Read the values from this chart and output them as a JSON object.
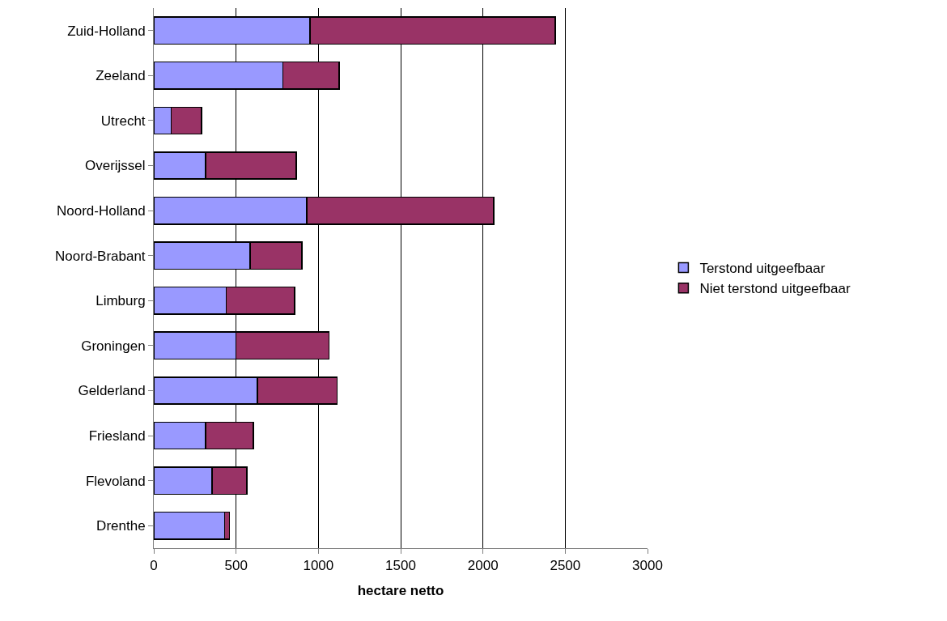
{
  "chart_data": {
    "type": "bar",
    "orientation": "horizontal",
    "stacked": true,
    "xlabel": "hectare netto",
    "categories": [
      "Zuid-Holland",
      "Zeeland",
      "Utrecht",
      "Overijssel",
      "Noord-Holland",
      "Noord-Brabant",
      "Limburg",
      "Groningen",
      "Gelderland",
      "Friesland",
      "Flevoland",
      "Drenthe"
    ],
    "series": [
      {
        "name": "Terstond uitgeefbaar",
        "color": "#9999ff",
        "values": [
          950,
          785,
          105,
          315,
          930,
          585,
          440,
          500,
          630,
          315,
          355,
          430
        ]
      },
      {
        "name": "Niet terstond uitgeefbaar",
        "color": "#993366",
        "values": [
          1490,
          340,
          185,
          550,
          1135,
          315,
          415,
          565,
          485,
          290,
          210,
          30
        ]
      }
    ],
    "xlim": [
      0,
      3000
    ],
    "xticks": [
      0,
      500,
      1000,
      1500,
      2000,
      2500,
      3000
    ],
    "grid": "x",
    "legend": "right"
  }
}
